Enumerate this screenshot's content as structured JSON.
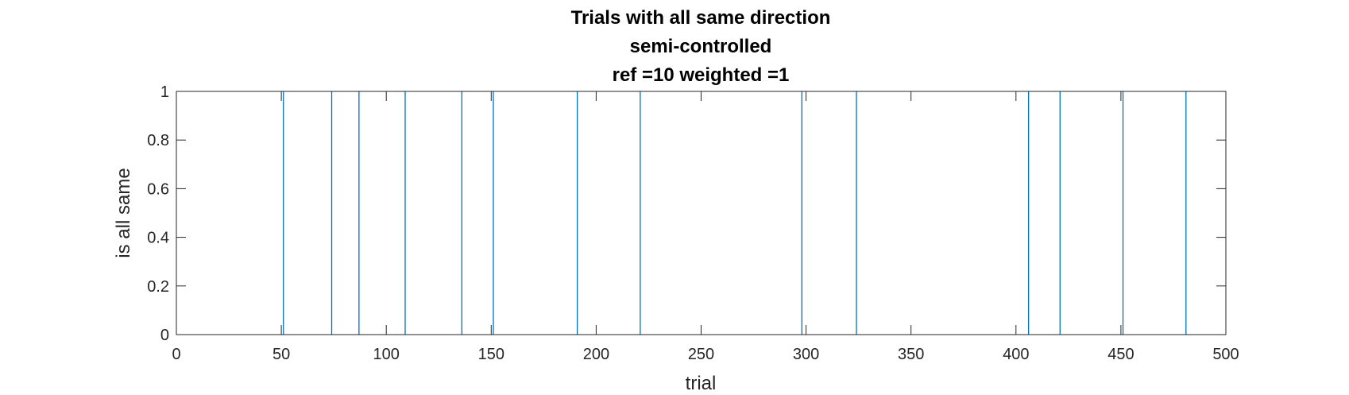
{
  "chart_data": {
    "type": "line",
    "title": [
      "Trials with all same direction",
      "semi-controlled",
      "ref =10 weighted =1"
    ],
    "xlabel": "trial",
    "ylabel": "is all same",
    "xlim": [
      0,
      500
    ],
    "ylim": [
      0,
      1
    ],
    "xticks": [
      0,
      50,
      100,
      150,
      200,
      250,
      300,
      350,
      400,
      450,
      500
    ],
    "yticks": [
      0,
      0.2,
      0.4,
      0.6,
      0.8,
      1
    ],
    "xtick_labels": [
      "0",
      "50",
      "100",
      "150",
      "200",
      "250",
      "300",
      "350",
      "400",
      "450",
      "500"
    ],
    "ytick_labels": [
      "0",
      "0.2",
      "0.4",
      "0.6",
      "0.8",
      "1"
    ],
    "grid": false,
    "series": [
      {
        "color": "#0072bd",
        "spike_trials": [
          51,
          74,
          87,
          109,
          136,
          151,
          191,
          221,
          298,
          324,
          406,
          421,
          451,
          481
        ],
        "baseline": 0,
        "peak": 1
      }
    ]
  }
}
